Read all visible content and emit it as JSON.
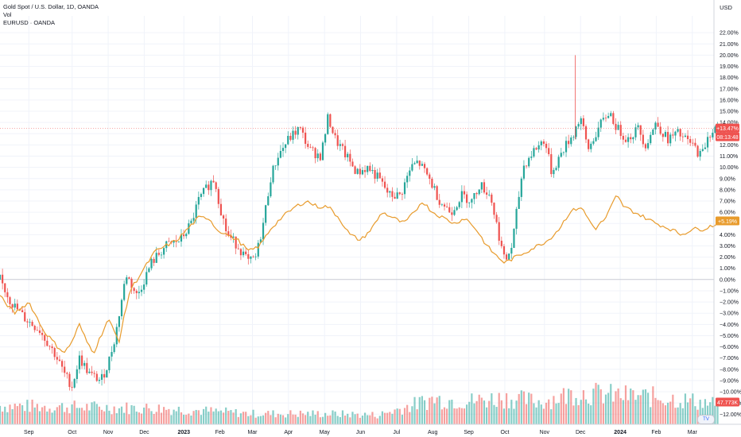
{
  "legend": {
    "main": "Gold Spot / U.S. Dollar, 1D, OANDA",
    "vol": "Vol",
    "compare": "EURUSD · OANDA"
  },
  "currency": "USD",
  "logo_text": "TV",
  "chart_data": {
    "type": "line",
    "title": "Gold Spot / U.S. Dollar, 1D, OANDA",
    "y_axis": {
      "unit": "%",
      "ylim": [
        -12.9,
        23.5
      ],
      "ticks": [
        "22.00%",
        "21.00%",
        "20.00%",
        "19.00%",
        "18.00%",
        "17.00%",
        "16.00%",
        "15.00%",
        "14.00%",
        "13.00%",
        "12.00%",
        "11.00%",
        "10.00%",
        "9.00%",
        "8.00%",
        "7.00%",
        "6.00%",
        "5.00%",
        "4.00%",
        "3.00%",
        "2.00%",
        "1.00%",
        "0.00%",
        "−1.00%",
        "−2.00%",
        "−3.00%",
        "−4.00%",
        "−5.00%",
        "−6.00%",
        "−7.00%",
        "−8.00%",
        "−9.00%",
        "−10.00%",
        "−11.00%",
        "−12.00%"
      ],
      "tick_values": [
        22,
        21,
        20,
        19,
        18,
        17,
        16,
        15,
        14,
        13,
        12,
        11,
        10,
        9,
        8,
        7,
        6,
        5,
        4,
        3,
        2,
        1,
        0,
        -1,
        -2,
        -3,
        -4,
        -5,
        -6,
        -7,
        -8,
        -9,
        -10,
        -11,
        -12
      ]
    },
    "x_axis": {
      "labels": [
        "Sep",
        "Oct",
        "Nov",
        "Dec",
        "2023",
        "Feb",
        "Mar",
        "Apr",
        "May",
        "Jun",
        "Jul",
        "Aug",
        "Sep",
        "Oct",
        "Nov",
        "Dec",
        "2024",
        "Feb",
        "Mar"
      ],
      "bold": [
        "2023",
        "2024"
      ],
      "months_index": [
        0.8,
        2.0,
        3.0,
        4.0,
        5.1,
        6.1,
        7.0,
        8.0,
        9.0,
        10.0,
        11.0,
        12.0,
        13.0,
        14.0,
        15.1,
        16.1,
        17.2,
        18.2,
        19.2
      ],
      "range_months": [
        0,
        19.8
      ]
    },
    "series": [
      {
        "name": "Gold Spot / U.S. Dollar, 1D, OANDA",
        "kind": "candles",
        "anchors": [
          [
            0,
            0.0
          ],
          [
            0.3,
            -2.0
          ],
          [
            0.7,
            -3.5
          ],
          [
            1.1,
            -4.5
          ],
          [
            1.5,
            -6.5
          ],
          [
            1.8,
            -8.5
          ],
          [
            2.0,
            -9.5
          ],
          [
            2.2,
            -7.0
          ],
          [
            2.5,
            -8.5
          ],
          [
            2.8,
            -9.0
          ],
          [
            3.0,
            -7.5
          ],
          [
            3.2,
            -5.0
          ],
          [
            3.5,
            0.5
          ],
          [
            3.8,
            -1.5
          ],
          [
            4.2,
            1.5
          ],
          [
            4.6,
            3.0
          ],
          [
            5.0,
            3.5
          ],
          [
            5.3,
            5.0
          ],
          [
            5.5,
            7.0
          ],
          [
            5.8,
            8.5
          ],
          [
            5.95,
            9.0
          ],
          [
            6.1,
            6.5
          ],
          [
            6.3,
            4.0
          ],
          [
            6.6,
            3.0
          ],
          [
            6.9,
            1.5
          ],
          [
            7.1,
            2.0
          ],
          [
            7.3,
            5.0
          ],
          [
            7.5,
            9.0
          ],
          [
            7.7,
            11.0
          ],
          [
            8.0,
            12.5
          ],
          [
            8.3,
            13.5
          ],
          [
            8.6,
            11.5
          ],
          [
            8.9,
            11.0
          ],
          [
            9.1,
            14.5
          ],
          [
            9.3,
            12.5
          ],
          [
            9.6,
            11.0
          ],
          [
            9.9,
            9.5
          ],
          [
            10.2,
            10.0
          ],
          [
            10.5,
            9.0
          ],
          [
            10.8,
            7.5
          ],
          [
            11.1,
            7.5
          ],
          [
            11.4,
            10.0
          ],
          [
            11.6,
            10.5
          ],
          [
            11.9,
            9.0
          ],
          [
            12.2,
            7.0
          ],
          [
            12.5,
            6.0
          ],
          [
            12.8,
            7.5
          ],
          [
            13.1,
            7.0
          ],
          [
            13.3,
            8.5
          ],
          [
            13.6,
            7.5
          ],
          [
            13.8,
            4.5
          ],
          [
            14.0,
            1.5
          ],
          [
            14.2,
            3.0
          ],
          [
            14.5,
            10.0
          ],
          [
            14.8,
            11.5
          ],
          [
            15.1,
            12.5
          ],
          [
            15.3,
            9.5
          ],
          [
            15.6,
            11.5
          ],
          [
            15.9,
            13.0
          ],
          [
            16.1,
            14.5
          ],
          [
            16.3,
            11.5
          ],
          [
            16.6,
            13.5
          ],
          [
            16.9,
            15.0
          ],
          [
            17.1,
            13.5
          ],
          [
            17.4,
            12.5
          ],
          [
            17.7,
            13.5
          ],
          [
            17.9,
            12.0
          ],
          [
            18.2,
            14.0
          ],
          [
            18.5,
            12.5
          ],
          [
            18.8,
            13.0
          ],
          [
            19.2,
            12.0
          ],
          [
            19.45,
            11.0
          ],
          [
            19.65,
            13.0
          ],
          [
            19.9,
            13.5
          ]
        ],
        "last_badge": "+13.47%",
        "countdown": "08:13:48"
      },
      {
        "name": "EURUSD · OANDA",
        "kind": "line",
        "anchors": [
          [
            0,
            -1.5
          ],
          [
            0.4,
            -3.0
          ],
          [
            0.8,
            -2.0
          ],
          [
            1.2,
            -4.5
          ],
          [
            1.6,
            -6.0
          ],
          [
            1.8,
            -6.5
          ],
          [
            2.0,
            -5.5
          ],
          [
            2.2,
            -4.0
          ],
          [
            2.4,
            -5.5
          ],
          [
            2.6,
            -6.5
          ],
          [
            2.8,
            -5.0
          ],
          [
            3.0,
            -3.5
          ],
          [
            3.3,
            -5.5
          ],
          [
            3.6,
            -1.0
          ],
          [
            4.0,
            1.0
          ],
          [
            4.3,
            2.5
          ],
          [
            4.6,
            3.0
          ],
          [
            4.9,
            3.5
          ],
          [
            5.2,
            4.5
          ],
          [
            5.5,
            5.5
          ],
          [
            5.8,
            5.5
          ],
          [
            6.0,
            4.5
          ],
          [
            6.3,
            4.0
          ],
          [
            6.6,
            3.5
          ],
          [
            6.9,
            2.5
          ],
          [
            7.2,
            3.0
          ],
          [
            7.5,
            4.5
          ],
          [
            7.8,
            5.5
          ],
          [
            8.2,
            6.5
          ],
          [
            8.5,
            7.0
          ],
          [
            8.8,
            6.5
          ],
          [
            9.1,
            6.5
          ],
          [
            9.4,
            5.5
          ],
          [
            9.7,
            4.0
          ],
          [
            10.0,
            3.5
          ],
          [
            10.3,
            4.5
          ],
          [
            10.6,
            6.0
          ],
          [
            10.9,
            5.5
          ],
          [
            11.2,
            5.0
          ],
          [
            11.5,
            6.0
          ],
          [
            11.7,
            7.0
          ],
          [
            12.0,
            6.0
          ],
          [
            12.3,
            5.5
          ],
          [
            12.6,
            5.0
          ],
          [
            12.9,
            5.5
          ],
          [
            13.2,
            4.5
          ],
          [
            13.5,
            3.0
          ],
          [
            13.8,
            2.0
          ],
          [
            14.0,
            1.5
          ],
          [
            14.3,
            2.0
          ],
          [
            14.6,
            2.5
          ],
          [
            14.9,
            3.0
          ],
          [
            15.2,
            3.5
          ],
          [
            15.5,
            4.5
          ],
          [
            15.8,
            6.0
          ],
          [
            16.1,
            6.5
          ],
          [
            16.3,
            5.5
          ],
          [
            16.5,
            4.5
          ],
          [
            16.8,
            5.5
          ],
          [
            17.1,
            7.5
          ],
          [
            17.3,
            6.5
          ],
          [
            17.6,
            6.0
          ],
          [
            17.9,
            5.5
          ],
          [
            18.2,
            5.0
          ],
          [
            18.6,
            4.5
          ],
          [
            18.9,
            4.0
          ],
          [
            19.2,
            4.5
          ],
          [
            19.5,
            4.5
          ],
          [
            19.9,
            5.0
          ]
        ],
        "color": "#e89b2c",
        "last_badge": "+5.19%"
      },
      {
        "name": "Vol",
        "kind": "volume",
        "profile": [
          [
            0,
            0.28
          ],
          [
            4.5,
            0.24
          ],
          [
            7.0,
            0.16
          ],
          [
            9.0,
            0.16
          ],
          [
            10.5,
            0.14
          ],
          [
            12.0,
            0.38
          ],
          [
            13.0,
            0.35
          ],
          [
            14.0,
            0.4
          ],
          [
            15.0,
            0.34
          ],
          [
            16.0,
            0.48
          ],
          [
            17.0,
            0.44
          ],
          [
            18.5,
            0.4
          ],
          [
            19.9,
            0.3
          ]
        ],
        "last_badge": "47.773K"
      }
    ],
    "reference_line": 0,
    "colors": {
      "up": "#26a69a",
      "down": "#ef5350",
      "compare": "#e89b2c",
      "grid": "#f0f3fa"
    }
  }
}
